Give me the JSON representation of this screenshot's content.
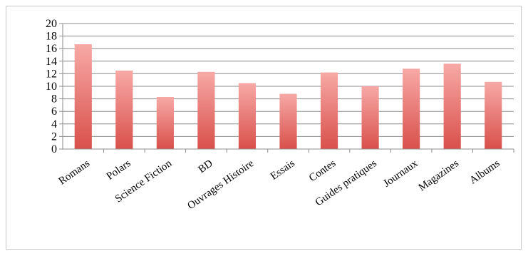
{
  "chart_data": {
    "type": "bar",
    "title": "",
    "xlabel": "",
    "ylabel": "",
    "categories": [
      "Romans",
      "Polars",
      "Science Fiction",
      "BD",
      "Ouvrages Histoire",
      "Essais",
      "Contes",
      "Guides pratiques",
      "Journaux",
      "Magazines",
      "Albums"
    ],
    "values": [
      16.7,
      12.5,
      8.3,
      12.3,
      10.5,
      8.8,
      12.2,
      10.0,
      12.8,
      13.6,
      10.7
    ],
    "ylim": [
      0,
      20
    ],
    "yticks": [
      "0",
      "2",
      "4",
      "6",
      "8",
      "10",
      "12",
      "14",
      "16",
      "18",
      "20"
    ],
    "grid": true,
    "legend": "none",
    "colors": {
      "bar_top": "#f7a9a6",
      "bar_bottom": "#d9504b",
      "grid": "#8c8c8c"
    }
  }
}
